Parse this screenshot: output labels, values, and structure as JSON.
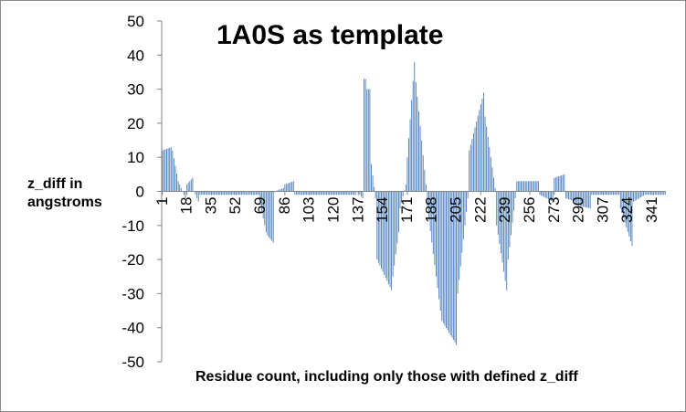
{
  "chart_data": {
    "type": "bar",
    "title": "1A0S as template",
    "ylabel": "z_diff in angstroms",
    "xlabel": "Residue count, including only those with defined z_diff",
    "ylim": [
      -50,
      50
    ],
    "ytick_labels": [
      "50",
      "40",
      "30",
      "20",
      "10",
      "0",
      "-10",
      "-20",
      "-30",
      "-40",
      "-50"
    ],
    "xtick_labels": [
      "1",
      "18",
      "35",
      "52",
      "69",
      "86",
      "103",
      "120",
      "137",
      "154",
      "171",
      "188",
      "205",
      "222",
      "239",
      "256",
      "273",
      "290",
      "307",
      "324",
      "341"
    ],
    "color": "#4a7ebb",
    "x_start": 1,
    "x_end": 350,
    "segments": [
      {
        "from": 1,
        "to": 7,
        "start": 12,
        "end": 13
      },
      {
        "from": 8,
        "to": 12,
        "start": 12,
        "end": 3
      },
      {
        "from": 13,
        "to": 17,
        "start": 2,
        "end": -2
      },
      {
        "from": 18,
        "to": 22,
        "start": 2,
        "end": 4
      },
      {
        "from": 23,
        "to": 26,
        "start": 0,
        "end": -3
      },
      {
        "from": 27,
        "to": 68,
        "start": -1,
        "end": -1
      },
      {
        "from": 69,
        "to": 73,
        "start": -4,
        "end": -12
      },
      {
        "from": 74,
        "to": 78,
        "start": -13,
        "end": -15
      },
      {
        "from": 79,
        "to": 85,
        "start": 0,
        "end": 1
      },
      {
        "from": 86,
        "to": 92,
        "start": 2,
        "end": 3
      },
      {
        "from": 93,
        "to": 135,
        "start": -1,
        "end": -1
      },
      {
        "from": 136,
        "to": 140,
        "start": 0,
        "end": -2
      },
      {
        "from": 141,
        "to": 142,
        "start": 33,
        "end": 33
      },
      {
        "from": 143,
        "to": 145,
        "start": 30,
        "end": 30
      },
      {
        "from": 146,
        "to": 149,
        "start": 8,
        "end": -2
      },
      {
        "from": 150,
        "to": 160,
        "start": -20,
        "end": -29
      },
      {
        "from": 161,
        "to": 165,
        "start": -25,
        "end": -12
      },
      {
        "from": 166,
        "to": 170,
        "start": -5,
        "end": 2
      },
      {
        "from": 171,
        "to": 176,
        "start": 10,
        "end": 38
      },
      {
        "from": 177,
        "to": 184,
        "start": 32,
        "end": 2
      },
      {
        "from": 185,
        "to": 194,
        "start": -5,
        "end": -35
      },
      {
        "from": 195,
        "to": 205,
        "start": -38,
        "end": -45
      },
      {
        "from": 206,
        "to": 213,
        "start": -30,
        "end": -2
      },
      {
        "from": 214,
        "to": 224,
        "start": 12,
        "end": 29
      },
      {
        "from": 225,
        "to": 232,
        "start": 22,
        "end": 1
      },
      {
        "from": 233,
        "to": 240,
        "start": -10,
        "end": -29
      },
      {
        "from": 241,
        "to": 246,
        "start": -20,
        "end": -2
      },
      {
        "from": 247,
        "to": 262,
        "start": 3,
        "end": 3
      },
      {
        "from": 263,
        "to": 272,
        "start": -1,
        "end": -3
      },
      {
        "from": 273,
        "to": 280,
        "start": 4,
        "end": 5
      },
      {
        "from": 281,
        "to": 287,
        "start": -2,
        "end": -3
      },
      {
        "from": 288,
        "to": 298,
        "start": -4,
        "end": -5
      },
      {
        "from": 299,
        "to": 318,
        "start": -1,
        "end": -1
      },
      {
        "from": 319,
        "to": 327,
        "start": -5,
        "end": -16
      },
      {
        "from": 328,
        "to": 336,
        "start": -3,
        "end": -1
      },
      {
        "from": 337,
        "to": 350,
        "start": -1,
        "end": -1
      }
    ]
  }
}
